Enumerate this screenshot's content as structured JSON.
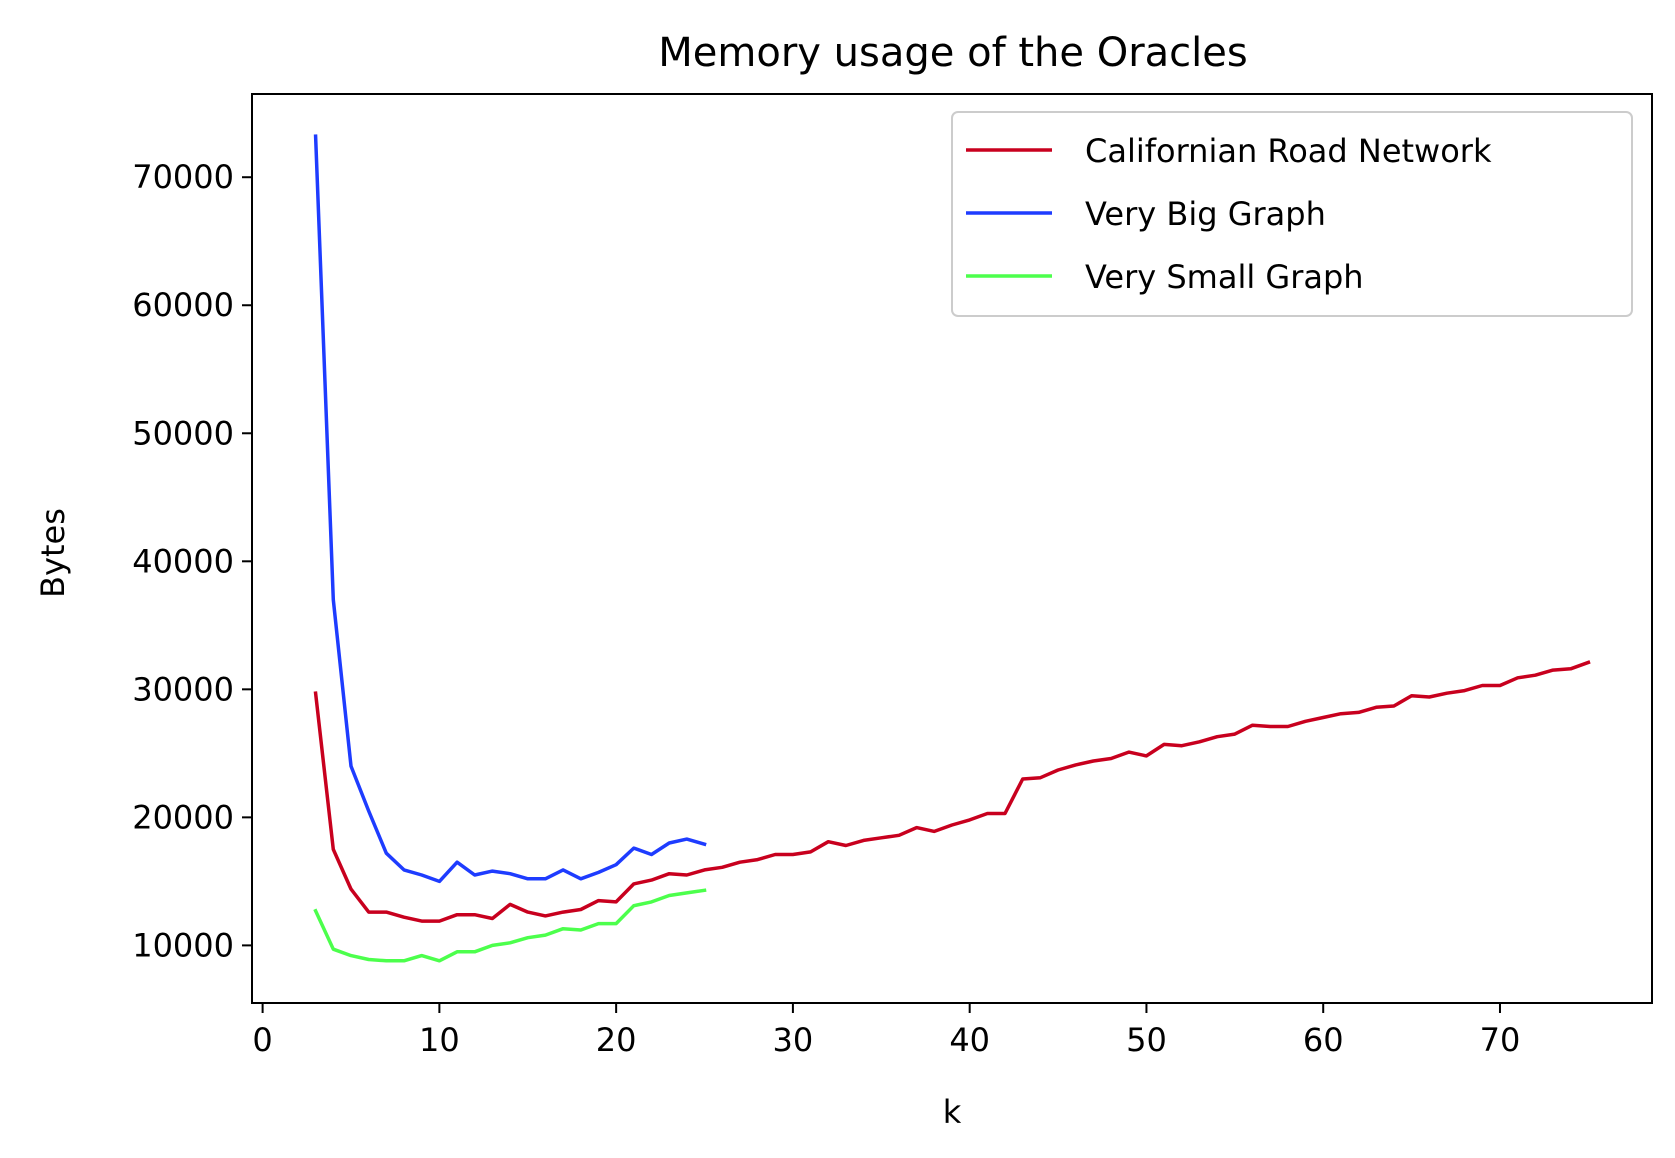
{
  "chart_data": {
    "type": "line",
    "title": "Memory usage of the Oracles",
    "xlabel": "k",
    "ylabel": "Bytes",
    "xlim": [
      -0.6,
      78.6
    ],
    "ylim": [
      5500,
      76500
    ],
    "xticks": [
      0,
      10,
      20,
      30,
      40,
      50,
      60,
      70
    ],
    "yticks": [
      10000,
      20000,
      30000,
      40000,
      50000,
      60000,
      70000
    ],
    "grid": false,
    "legend_position": "top-right",
    "series": [
      {
        "name": "Californian Road Network",
        "color": "#c8001e",
        "x": [
          3,
          4,
          5,
          6,
          7,
          8,
          9,
          10,
          11,
          12,
          13,
          14,
          15,
          16,
          17,
          18,
          19,
          20,
          21,
          22,
          23,
          24,
          25,
          26,
          27,
          28,
          29,
          30,
          31,
          32,
          33,
          34,
          35,
          36,
          37,
          38,
          39,
          40,
          41,
          42,
          43,
          44,
          45,
          46,
          47,
          48,
          49,
          50,
          51,
          52,
          53,
          54,
          55,
          56,
          57,
          58,
          59,
          60,
          61,
          62,
          63,
          64,
          65,
          66,
          67,
          68,
          69,
          70,
          71,
          72,
          73,
          74,
          75
        ],
        "y": [
          29700,
          17500,
          14400,
          12600,
          12600,
          12200,
          11900,
          11900,
          12400,
          12400,
          12100,
          13200,
          12600,
          12300,
          12600,
          12800,
          13500,
          13400,
          14800,
          15100,
          15600,
          15500,
          15900,
          16100,
          16500,
          16700,
          17100,
          17100,
          17300,
          18100,
          17800,
          18200,
          18400,
          18600,
          19200,
          18900,
          19400,
          19800,
          20300,
          20300,
          23000,
          23100,
          23700,
          24100,
          24400,
          24600,
          25100,
          24800,
          25700,
          25600,
          25900,
          26300,
          26500,
          27200,
          27100,
          27100,
          27500,
          27800,
          28100,
          28200,
          28600,
          28700,
          29500,
          29400,
          29700,
          29900,
          30300,
          30300,
          30900,
          31100,
          31500,
          31600,
          32100
        ]
      },
      {
        "name": "Very Big Graph",
        "color": "#1e3cff",
        "x": [
          3,
          4,
          5,
          6,
          7,
          8,
          9,
          10,
          11,
          12,
          13,
          14,
          15,
          16,
          17,
          18,
          19,
          20,
          21,
          22,
          23,
          24,
          25
        ],
        "y": [
          73200,
          37000,
          24000,
          20500,
          17200,
          15900,
          15500,
          15000,
          16500,
          15500,
          15800,
          15600,
          15200,
          15200,
          15900,
          15200,
          15700,
          16300,
          17600,
          17100,
          18000,
          18300,
          17900
        ]
      },
      {
        "name": "Very Small Graph",
        "color": "#4cff4c",
        "x": [
          3,
          4,
          5,
          6,
          7,
          8,
          9,
          10,
          11,
          12,
          13,
          14,
          15,
          16,
          17,
          18,
          19,
          20,
          21,
          22,
          23,
          24,
          25
        ],
        "y": [
          12700,
          9700,
          9200,
          8900,
          8800,
          8800,
          9200,
          8800,
          9500,
          9500,
          10000,
          10200,
          10600,
          10800,
          11300,
          11200,
          11700,
          11700,
          13100,
          13400,
          13900,
          14100,
          14300
        ]
      }
    ]
  }
}
